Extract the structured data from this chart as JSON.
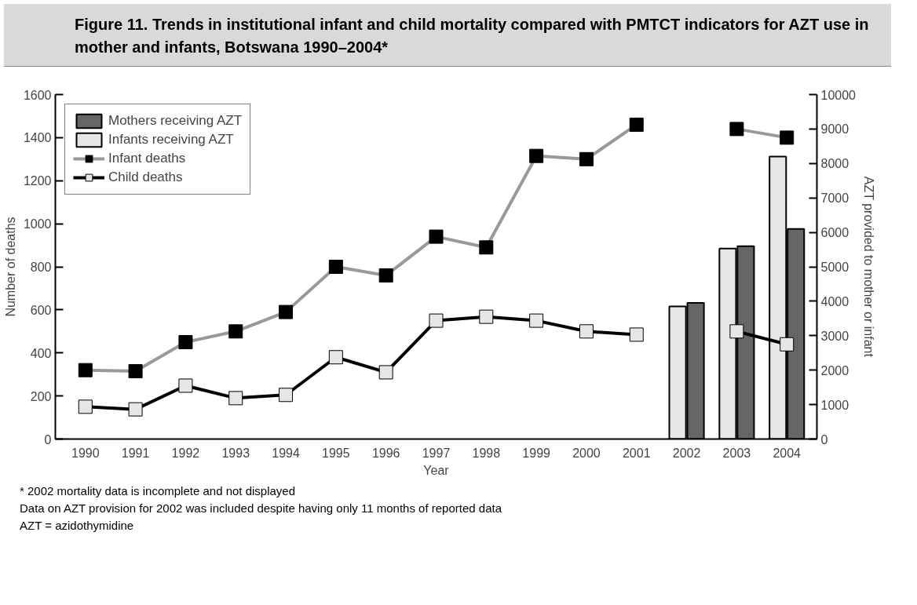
{
  "chart_data": {
    "type": "bar",
    "title": "Figure 11.   Trends in institutional infant and child mortality compared with PMTCT indicators for AZT use in mother and infants,  Botswana 1990–2004*",
    "xlabel": "Year",
    "ylabel": "Number of deaths",
    "y2label": "AZT provided to mother or infant",
    "categories": [
      "1990",
      "1991",
      "1992",
      "1993",
      "1994",
      "1995",
      "1996",
      "1997",
      "1998",
      "1999",
      "2000",
      "2001",
      "2002",
      "2003",
      "2004"
    ],
    "series": [
      {
        "name": "Mothers receiving AZT",
        "axis": "y2",
        "color": "#666666",
        "values": [
          null,
          null,
          null,
          null,
          null,
          null,
          null,
          null,
          null,
          null,
          null,
          null,
          3950,
          5600,
          6100
        ]
      },
      {
        "name": "Infants receiving AZT",
        "axis": "y2",
        "color": "#e6e6e6",
        "values": [
          null,
          null,
          null,
          null,
          null,
          null,
          null,
          null,
          null,
          null,
          null,
          null,
          3850,
          5530,
          8200
        ]
      },
      {
        "name": "Infant deaths",
        "type": "line",
        "color": "#999999",
        "values": [
          320,
          315,
          450,
          500,
          590,
          800,
          760,
          940,
          890,
          1315,
          1300,
          1460,
          null,
          1440,
          1400
        ]
      },
      {
        "name": "Child deaths",
        "type": "line",
        "color": "#000000",
        "values": [
          150,
          138,
          248,
          190,
          205,
          380,
          310,
          550,
          568,
          550,
          500,
          485,
          null,
          500,
          440
        ]
      }
    ],
    "ylim": [
      0,
      1600
    ],
    "yticks": [
      0,
      200,
      400,
      600,
      800,
      1000,
      1200,
      1400,
      1600
    ],
    "y2lim": [
      0,
      10000
    ],
    "y2ticks": [
      0,
      1000,
      2000,
      3000,
      4000,
      5000,
      6000,
      7000,
      8000,
      9000,
      10000
    ],
    "marker": "square",
    "grid": false,
    "legend": "top left",
    "annotations": [
      "* 2002 mortality data is incomplete and not displayed",
      "Data on AZT provision for 2002 was included despite having only 11 months of reported data",
      "AZT = azidothymidine"
    ]
  }
}
